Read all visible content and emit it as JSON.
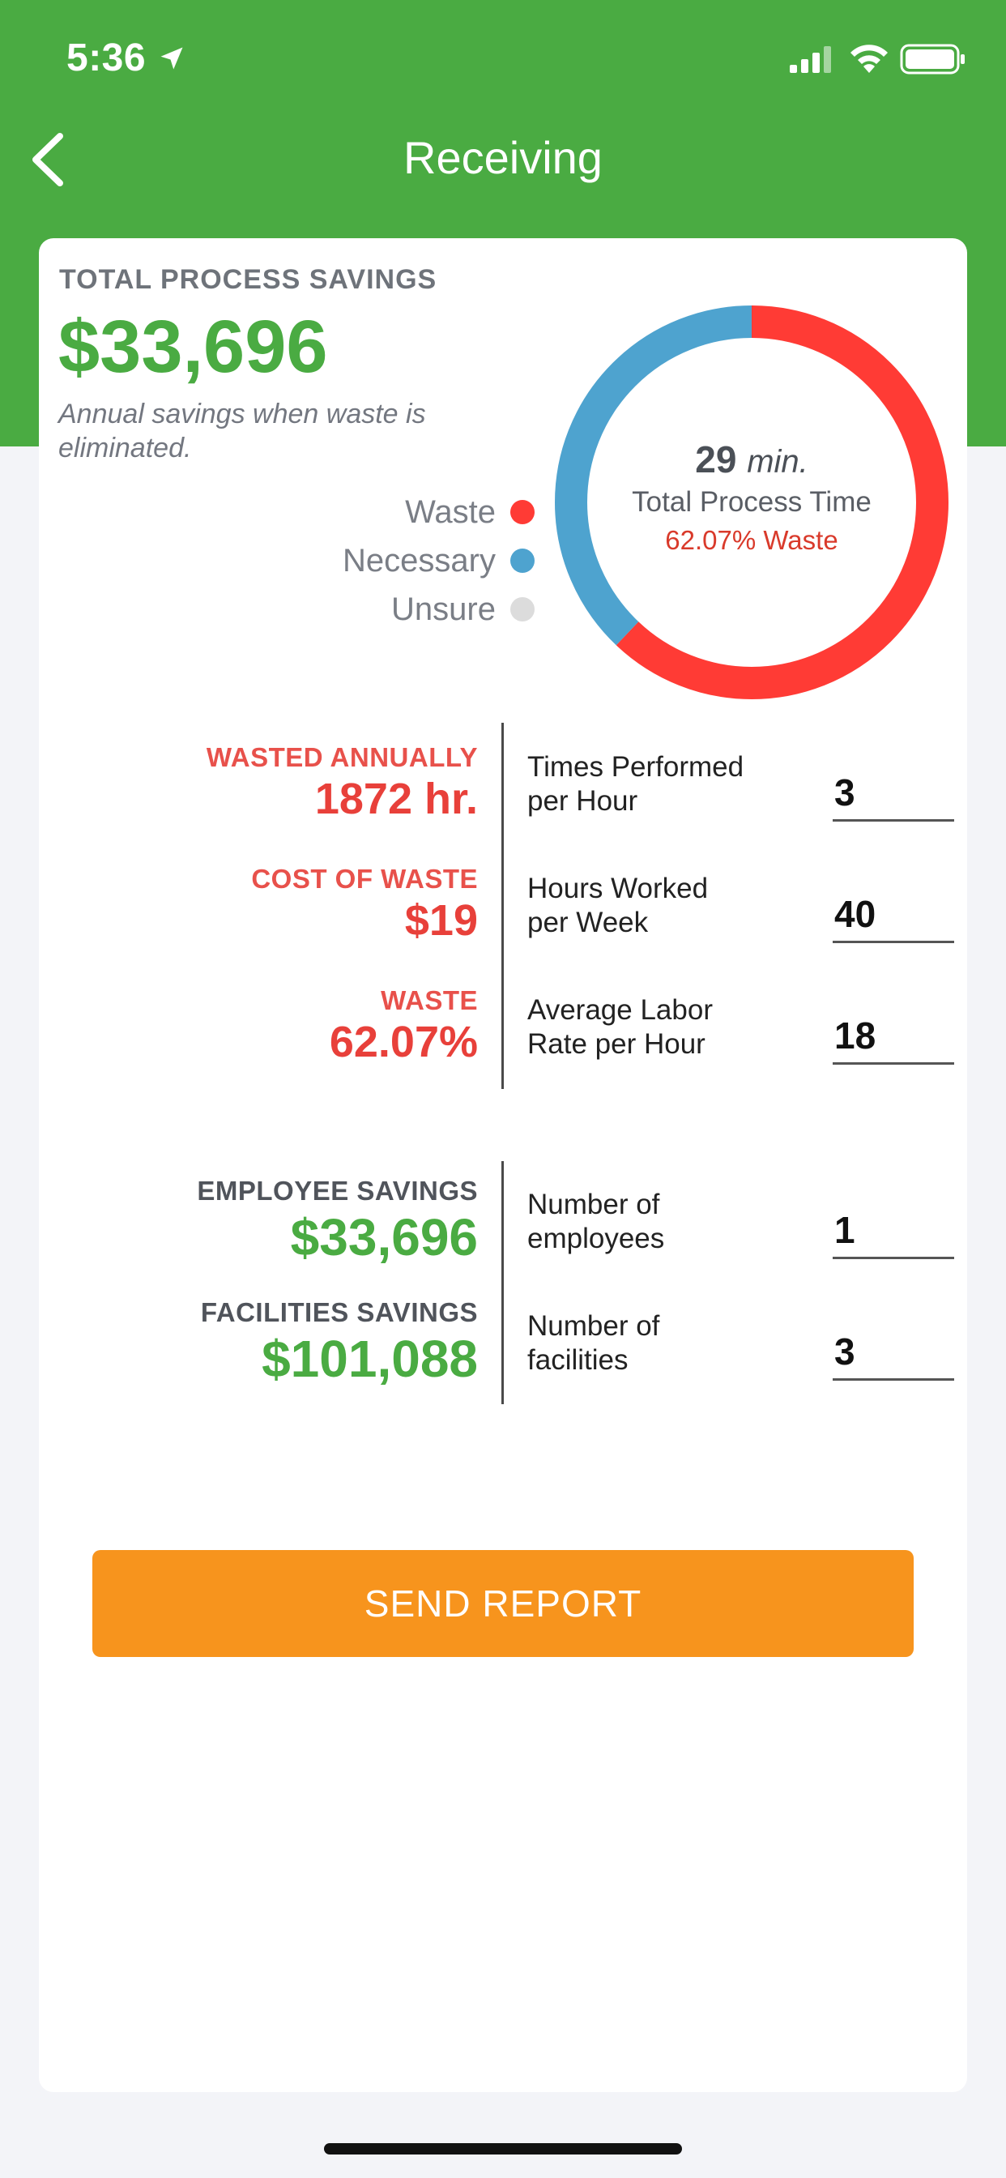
{
  "status_bar": {
    "time": "5:36"
  },
  "nav": {
    "title": "Receiving"
  },
  "summary": {
    "label": "TOTAL PROCESS SAVINGS",
    "value": "$33,696",
    "note": "Annual savings when waste is eliminated."
  },
  "legend": [
    {
      "label": "Waste",
      "color": "#ff3b35"
    },
    {
      "label": "Necessary",
      "color": "#4ea3cf"
    },
    {
      "label": "Unsure",
      "color": "#dcdcdc"
    }
  ],
  "donut": {
    "minutes": "29",
    "minutes_unit": "min.",
    "subtitle": "Total Process Time",
    "waste_text": "62.07% Waste",
    "waste_fraction": 0.6207,
    "necessary_fraction": 0.3793,
    "unsure_fraction": 0
  },
  "metrics": [
    {
      "label": "WASTED ANNUALLY",
      "value": "1872 hr."
    },
    {
      "label": "COST OF WASTE",
      "value": "$19"
    },
    {
      "label": "WASTE",
      "value": "62.07%"
    }
  ],
  "inputs": [
    {
      "label_1": "Times Performed",
      "label_2": "per Hour",
      "value": "3"
    },
    {
      "label_1": "Hours Worked",
      "label_2": "per Week",
      "value": "40"
    },
    {
      "label_1": "Average Labor",
      "label_2": "Rate per Hour",
      "value": "18"
    }
  ],
  "savings": [
    {
      "label": "EMPLOYEE SAVINGS",
      "value": "$33,696"
    },
    {
      "label": "FACILITIES SAVINGS",
      "value": "$101,088"
    }
  ],
  "counts": [
    {
      "label_1": "Number of",
      "label_2": "employees",
      "value": "1"
    },
    {
      "label_1": "Number of",
      "label_2": "facilities",
      "value": "3"
    }
  ],
  "actions": {
    "send_report": "SEND REPORT"
  },
  "colors": {
    "brand_green": "#4aab42",
    "waste_red": "#e8403a",
    "savings_green": "#4aab42",
    "button_orange": "#f7941d"
  }
}
